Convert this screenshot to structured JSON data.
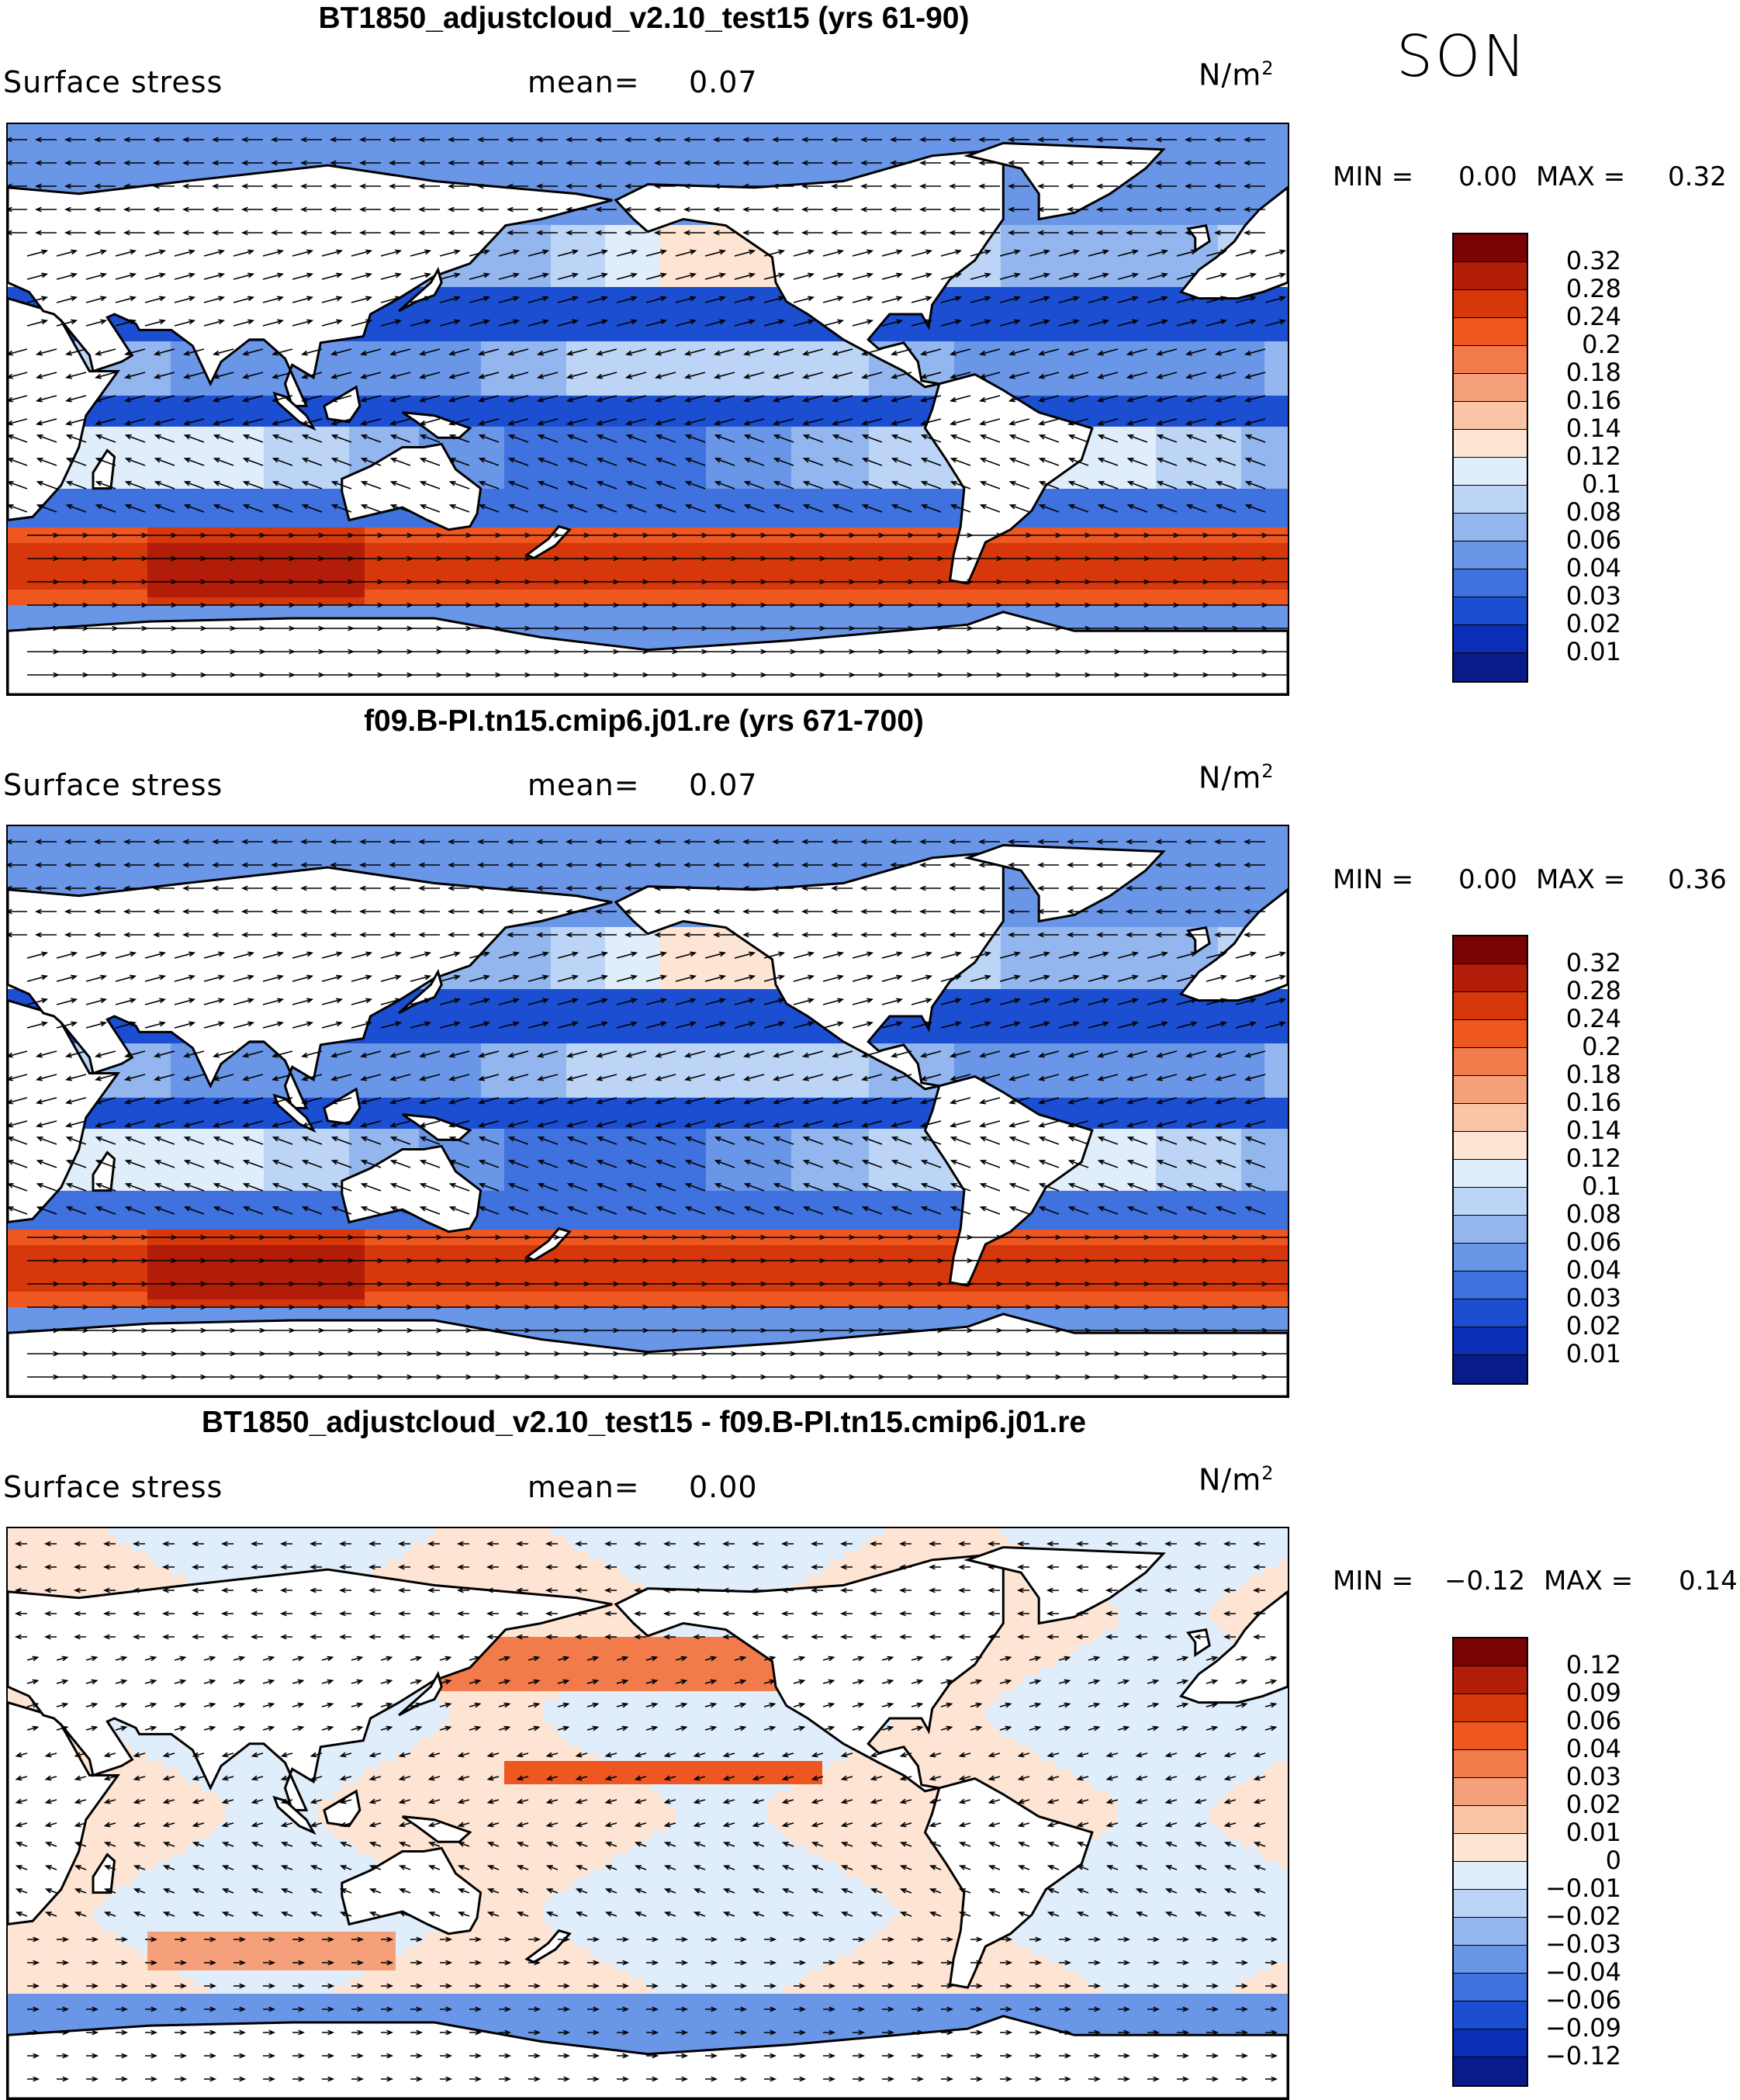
{
  "season": "SON",
  "panels": [
    {
      "id": "top",
      "title": "BT1850_adjustcloud_v2.10_test15 (yrs 61-90)",
      "variable": "Surface stress",
      "mean_label": "mean=",
      "mean_value": "0.07",
      "units_base": "N/m",
      "units_sup": "2",
      "min_label": "MIN =",
      "min_value": "0.00",
      "max_label": "MAX =",
      "max_value": "0.32",
      "colorbar_ticks": [
        "0.32",
        "0.28",
        "0.24",
        "0.2",
        "0.18",
        "0.16",
        "0.14",
        "0.12",
        "0.1",
        "0.08",
        "0.06",
        "0.04",
        "0.03",
        "0.02",
        "0.01"
      ],
      "colorbar_colors": [
        "#7a0403",
        "#b11d09",
        "#d6380c",
        "#ee5720",
        "#f27b4b",
        "#f6a07b",
        "#fac4a6",
        "#fde4d3",
        "#e0edfa",
        "#bcd5f6",
        "#93b6ef",
        "#6a96e8",
        "#3f71df",
        "#1b4ed0",
        "#0a2eb6",
        "#071c8a"
      ],
      "field": "mean"
    },
    {
      "id": "middle",
      "title": "f09.B-PI.tn15.cmip6.j01.re (yrs 671-700)",
      "variable": "Surface stress",
      "mean_label": "mean=",
      "mean_value": "0.07",
      "units_base": "N/m",
      "units_sup": "2",
      "min_label": "MIN =",
      "min_value": "0.00",
      "max_label": "MAX =",
      "max_value": "0.36",
      "colorbar_ticks": [
        "0.32",
        "0.28",
        "0.24",
        "0.2",
        "0.18",
        "0.16",
        "0.14",
        "0.12",
        "0.1",
        "0.08",
        "0.06",
        "0.04",
        "0.03",
        "0.02",
        "0.01"
      ],
      "colorbar_colors": [
        "#7a0403",
        "#b11d09",
        "#d6380c",
        "#ee5720",
        "#f27b4b",
        "#f6a07b",
        "#fac4a6",
        "#fde4d3",
        "#e0edfa",
        "#bcd5f6",
        "#93b6ef",
        "#6a96e8",
        "#3f71df",
        "#1b4ed0",
        "#0a2eb6",
        "#071c8a"
      ],
      "field": "mean"
    },
    {
      "id": "bottom",
      "title": "BT1850_adjustcloud_v2.10_test15 - f09.B-PI.tn15.cmip6.j01.re",
      "variable": "Surface stress",
      "mean_label": "mean=",
      "mean_value": "0.00",
      "units_base": "N/m",
      "units_sup": "2",
      "min_label": "MIN =",
      "min_value": "−0.12",
      "max_label": "MAX =",
      "max_value": "0.14",
      "colorbar_ticks": [
        "0.12",
        "0.09",
        "0.06",
        "0.04",
        "0.03",
        "0.02",
        "0.01",
        "0",
        "−0.01",
        "−0.02",
        "−0.03",
        "−0.04",
        "−0.06",
        "−0.09",
        "−0.12"
      ],
      "colorbar_colors": [
        "#7a0403",
        "#b11d09",
        "#d6380c",
        "#ee5720",
        "#f27b4b",
        "#f6a07b",
        "#fac4a6",
        "#fde4d3",
        "#e0edfa",
        "#bcd5f6",
        "#93b6ef",
        "#6a96e8",
        "#3f71df",
        "#1b4ed0",
        "#0a2eb6",
        "#071c8a"
      ],
      "field": "diff"
    }
  ]
}
